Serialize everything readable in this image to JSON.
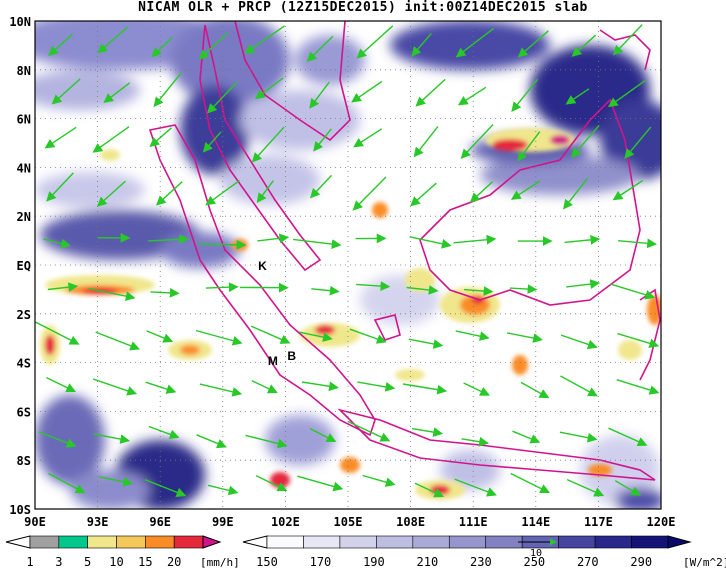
{
  "title": "NICAM OLR + PRCP (12Z15DEC2015) init:00Z14DEC2015 slab",
  "map": {
    "lon_labels": [
      "90E",
      "93E",
      "96E",
      "99E",
      "102E",
      "105E",
      "108E",
      "111E",
      "114E",
      "117E",
      "120E"
    ],
    "lat_labels": [
      "10N",
      "8N",
      "6N",
      "4N",
      "2N",
      "EQ",
      "2S",
      "4S",
      "6S",
      "8S",
      "10S"
    ],
    "extent": {
      "lon": [
        90,
        120
      ],
      "lat": [
        -10,
        10
      ]
    },
    "markers": [
      {
        "label": "K",
        "lon": 100.9,
        "lat": -0.2
      },
      {
        "label": "M",
        "lon": 101.4,
        "lat": -4.1
      },
      {
        "label": "B",
        "lon": 102.3,
        "lat": -3.9
      }
    ],
    "grid": true
  },
  "prcp_colorbar": {
    "labels": [
      "1",
      "3",
      "5",
      "10",
      "15",
      "20"
    ],
    "unit": "[mm/h]",
    "colors": [
      "#a0a0a0",
      "#00c88c",
      "#f0e68c",
      "#f5c85a",
      "#fa8c28",
      "#e6283c",
      "#d2148c"
    ]
  },
  "olr_colorbar": {
    "labels": [
      "150",
      "170",
      "190",
      "210",
      "230",
      "250",
      "270",
      "290"
    ],
    "unit": "[W/m^2]",
    "colors": [
      "#fafaff",
      "#e6e6f5",
      "#d2d2eb",
      "#bebee1",
      "#aaaad7",
      "#9696cd",
      "#8282c3",
      "#6464b4",
      "#4646a0",
      "#28288c",
      "#141478"
    ],
    "reference_vector": "10"
  },
  "colors": {
    "coastline": "#d2148c",
    "wind_vectors": "#28c828",
    "cloud": "#5050aa"
  }
}
